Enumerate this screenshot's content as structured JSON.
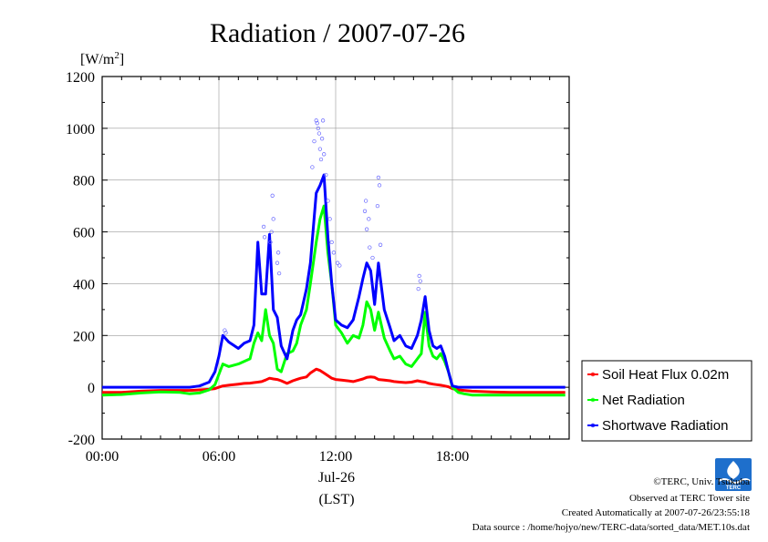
{
  "chart_data": {
    "type": "line",
    "title": "Radiation / 2007-07-26",
    "ylabel": "[W/m",
    "ylabel_sup": "2",
    "ylabel_close": "]",
    "xlabel": "Jul-26",
    "xunit": "(LST)",
    "ylim": [
      -200,
      1200
    ],
    "yticks": [
      "1200",
      "1000",
      "800",
      "600",
      "400",
      "200",
      "0",
      "-200"
    ],
    "ytick_values": [
      1200,
      1000,
      800,
      600,
      400,
      200,
      0,
      -200
    ],
    "xlim_hours": [
      0,
      24
    ],
    "xticks": [
      "00:00",
      "06:00",
      "12:00",
      "18:00"
    ],
    "xtick_hours": [
      0,
      6,
      12,
      18
    ],
    "grid": true,
    "legend_position": "right",
    "x_hours": [
      0,
      1,
      2,
      3,
      4,
      4.5,
      5,
      5.5,
      5.8,
      6,
      6.2,
      6.5,
      7,
      7.3,
      7.6,
      7.8,
      8,
      8.2,
      8.4,
      8.6,
      8.8,
      9,
      9.2,
      9.5,
      9.8,
      10,
      10.2,
      10.5,
      10.7,
      11,
      11.2,
      11.4,
      11.6,
      11.8,
      12,
      12.3,
      12.6,
      12.9,
      13.2,
      13.4,
      13.6,
      13.8,
      14,
      14.2,
      14.5,
      14.8,
      15,
      15.3,
      15.6,
      15.9,
      16.2,
      16.4,
      16.6,
      16.8,
      17,
      17.2,
      17.4,
      17.6,
      17.8,
      18,
      18.3,
      18.6,
      19,
      20,
      21,
      22,
      23,
      23.8
    ],
    "series": [
      {
        "name": "Soil Heat Flux 0.02m",
        "color": "#ff0000",
        "values": [
          -20,
          -20,
          -15,
          -12,
          -12,
          -12,
          -10,
          -8,
          -5,
          0,
          5,
          8,
          12,
          15,
          16,
          18,
          20,
          22,
          28,
          35,
          32,
          30,
          25,
          15,
          25,
          30,
          35,
          40,
          55,
          70,
          65,
          55,
          45,
          35,
          30,
          28,
          25,
          22,
          28,
          32,
          38,
          40,
          38,
          30,
          28,
          25,
          22,
          20,
          18,
          20,
          25,
          22,
          20,
          15,
          12,
          10,
          8,
          5,
          2,
          -5,
          -10,
          -12,
          -15,
          -18,
          -20,
          -20,
          -20,
          -20
        ]
      },
      {
        "name": "Net Radiation",
        "color": "#00ff00",
        "values": [
          -30,
          -28,
          -22,
          -18,
          -20,
          -25,
          -22,
          -10,
          10,
          50,
          90,
          80,
          90,
          100,
          110,
          170,
          210,
          180,
          300,
          200,
          170,
          70,
          60,
          130,
          140,
          170,
          240,
          300,
          400,
          560,
          650,
          700,
          520,
          400,
          240,
          210,
          170,
          200,
          190,
          240,
          330,
          300,
          220,
          290,
          190,
          140,
          110,
          120,
          90,
          80,
          110,
          130,
          290,
          160,
          120,
          110,
          130,
          100,
          60,
          0,
          -20,
          -25,
          -30,
          -30,
          -30,
          -30,
          -30,
          -30
        ]
      },
      {
        "name": "Shortwave Radiation",
        "color": "#0000ff",
        "values": [
          0,
          0,
          0,
          0,
          0,
          0,
          5,
          20,
          60,
          120,
          200,
          175,
          150,
          170,
          180,
          240,
          560,
          360,
          360,
          590,
          300,
          270,
          160,
          110,
          220,
          260,
          280,
          380,
          480,
          750,
          780,
          820,
          580,
          400,
          260,
          240,
          230,
          260,
          350,
          420,
          480,
          450,
          320,
          480,
          300,
          230,
          180,
          200,
          160,
          150,
          200,
          260,
          350,
          220,
          160,
          150,
          160,
          120,
          60,
          5,
          0,
          0,
          0,
          0,
          0,
          0,
          0,
          0
        ]
      }
    ],
    "scatter": [
      {
        "x": 8.3,
        "y": 620
      },
      {
        "x": 8.35,
        "y": 580
      },
      {
        "x": 8.7,
        "y": 600
      },
      {
        "x": 8.75,
        "y": 740
      },
      {
        "x": 8.8,
        "y": 650
      },
      {
        "x": 8.65,
        "y": 560
      },
      {
        "x": 9.0,
        "y": 480
      },
      {
        "x": 9.05,
        "y": 520
      },
      {
        "x": 9.1,
        "y": 440
      },
      {
        "x": 10.8,
        "y": 850
      },
      {
        "x": 10.9,
        "y": 950
      },
      {
        "x": 11.0,
        "y": 1030
      },
      {
        "x": 11.05,
        "y": 1020
      },
      {
        "x": 11.1,
        "y": 1000
      },
      {
        "x": 11.15,
        "y": 980
      },
      {
        "x": 11.2,
        "y": 920
      },
      {
        "x": 11.25,
        "y": 880
      },
      {
        "x": 11.3,
        "y": 960
      },
      {
        "x": 11.35,
        "y": 1030
      },
      {
        "x": 11.4,
        "y": 900
      },
      {
        "x": 11.5,
        "y": 820
      },
      {
        "x": 11.6,
        "y": 720
      },
      {
        "x": 11.7,
        "y": 650
      },
      {
        "x": 11.8,
        "y": 560
      },
      {
        "x": 11.9,
        "y": 520
      },
      {
        "x": 13.5,
        "y": 680
      },
      {
        "x": 13.55,
        "y": 720
      },
      {
        "x": 13.6,
        "y": 610
      },
      {
        "x": 13.7,
        "y": 650
      },
      {
        "x": 13.75,
        "y": 540
      },
      {
        "x": 13.9,
        "y": 500
      },
      {
        "x": 14.2,
        "y": 810
      },
      {
        "x": 14.25,
        "y": 780
      },
      {
        "x": 14.3,
        "y": 550
      },
      {
        "x": 14.15,
        "y": 700
      },
      {
        "x": 16.3,
        "y": 430
      },
      {
        "x": 16.35,
        "y": 410
      },
      {
        "x": 16.25,
        "y": 380
      },
      {
        "x": 6.3,
        "y": 220
      },
      {
        "x": 6.35,
        "y": 210
      },
      {
        "x": 12.1,
        "y": 480
      },
      {
        "x": 12.2,
        "y": 470
      }
    ]
  },
  "credits": {
    "copyright": "©TERC, Univ. Tsukuba",
    "site": "Observed at TERC Tower site",
    "created": "Created Automatically at 2007-07-26/23:55:18",
    "source": "Data source : /home/hojyo/new/TERC-data/sorted_data/MET.10s.dat"
  },
  "logo": {
    "text": "TERC"
  }
}
